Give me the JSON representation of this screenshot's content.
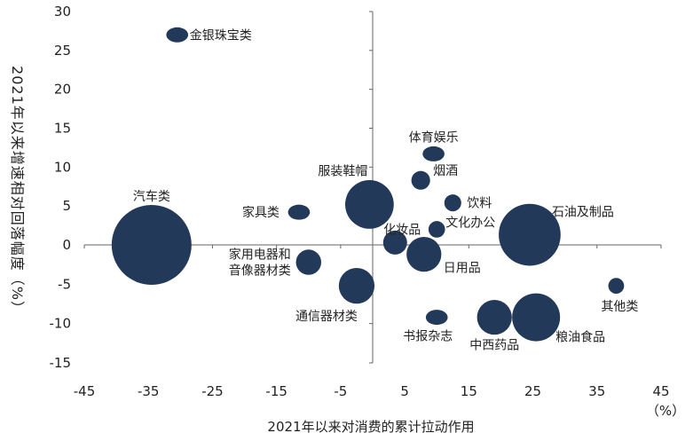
{
  "chart_data": {
    "type": "bubble",
    "title": "",
    "xlabel": "2021年以来对消费的累计拉动作用",
    "ylabel": "2021年以来增速相对回落幅度（%）",
    "x_unit": "（%）",
    "xlim": [
      -45,
      45
    ],
    "ylim": [
      -15,
      30
    ],
    "xticks": [
      -45,
      -35,
      -25,
      -15,
      -5,
      5,
      15,
      25,
      35,
      45
    ],
    "yticks": [
      30,
      25,
      20,
      15,
      10,
      5,
      0,
      -5,
      -10,
      -15
    ],
    "bubble_color": "#22395a",
    "points": [
      {
        "label": "金银珠宝类",
        "x": -30.5,
        "y": 27,
        "size": 2
      },
      {
        "label": "汽车类",
        "x": -34.5,
        "y": 0,
        "size": 100
      },
      {
        "label": "家具类",
        "x": -11.5,
        "y": 4.2,
        "size": 2.5
      },
      {
        "label": "服装鞋帽",
        "x": -0.5,
        "y": 5.2,
        "size": 37
      },
      {
        "label": "家用电器和音像器材类",
        "x": -10,
        "y": -2.2,
        "size": 10
      },
      {
        "label": "通信器材类",
        "x": -2.5,
        "y": -5.2,
        "size": 20
      },
      {
        "label": "化妆品",
        "x": 3.5,
        "y": 0.3,
        "size": 9
      },
      {
        "label": "日用品",
        "x": 8,
        "y": -1.2,
        "size": 19
      },
      {
        "label": "体育娱乐",
        "x": 9.5,
        "y": 11.7,
        "size": 1.3
      },
      {
        "label": "烟酒",
        "x": 7.5,
        "y": 8.3,
        "size": 5.5
      },
      {
        "label": "饮料",
        "x": 12.5,
        "y": 5.4,
        "size": 4.5
      },
      {
        "label": "文化办公",
        "x": 10,
        "y": 2,
        "size": 4.3
      },
      {
        "label": "石油及制品",
        "x": 24.5,
        "y": 1.3,
        "size": 60
      },
      {
        "label": "其他类",
        "x": 38,
        "y": -5.2,
        "size": 3.9
      },
      {
        "label": "书报杂志",
        "x": 10,
        "y": -9.2,
        "size": 1.2
      },
      {
        "label": "中西药品",
        "x": 19,
        "y": -9.2,
        "size": 19
      },
      {
        "label": "粮油食品",
        "x": 25.5,
        "y": -9.2,
        "size": 36
      }
    ]
  }
}
